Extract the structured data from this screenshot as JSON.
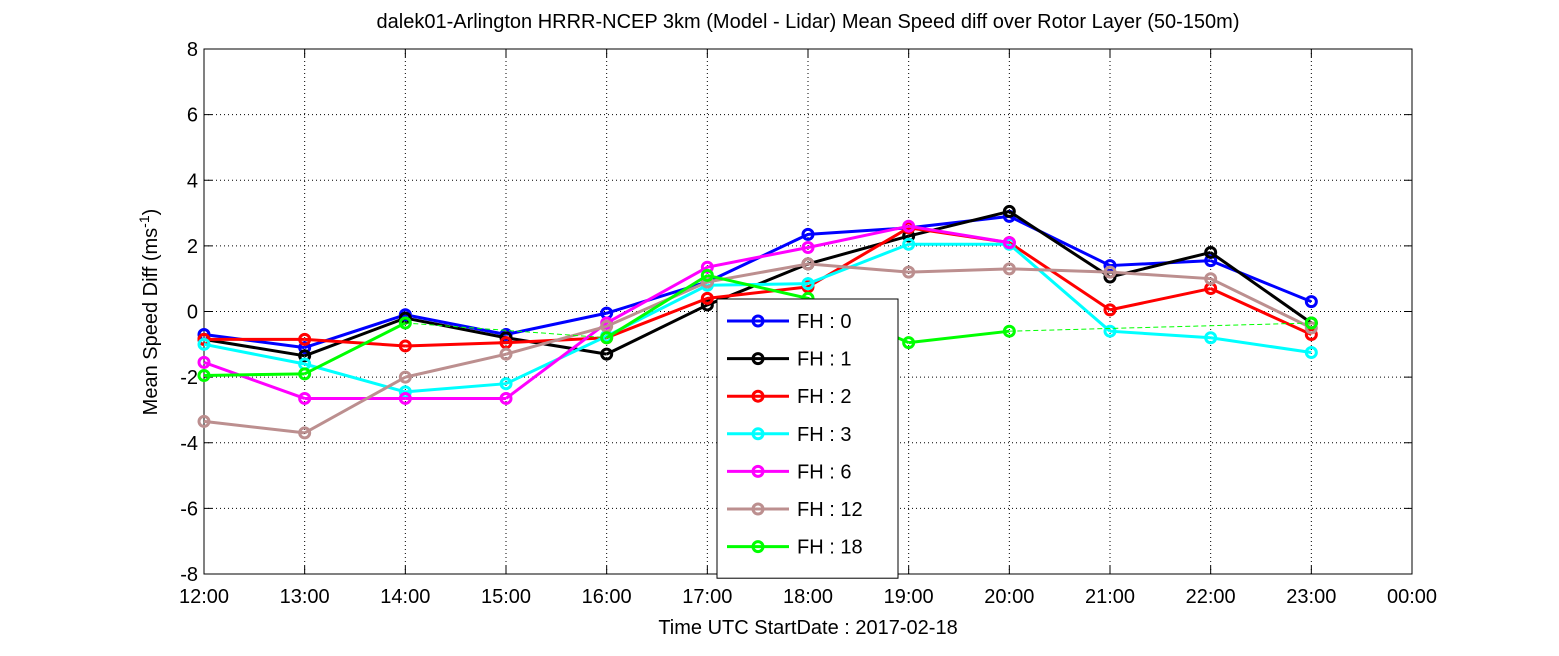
{
  "chart_data": {
    "type": "line",
    "title": "dalek01-Arlington HRRR-NCEP 3km (Model - Lidar) Mean Speed diff over Rotor Layer (50-150m)",
    "xlabel": "Time UTC    StartDate : 2017-02-18",
    "ylabel_main": "Mean Speed Diff (ms",
    "ylabel_sup": "-1",
    "ylabel_close": ")",
    "x_ticks": [
      "12:00",
      "13:00",
      "14:00",
      "15:00",
      "16:00",
      "17:00",
      "18:00",
      "19:00",
      "20:00",
      "21:00",
      "22:00",
      "23:00",
      "00:00"
    ],
    "y_ticks": [
      "8",
      "6",
      "4",
      "2",
      "0",
      "-2",
      "-4",
      "-6",
      "-8"
    ],
    "ylim": [
      -8,
      8
    ],
    "grid": true,
    "legend_position": "center",
    "series": [
      {
        "name": "FH : 0",
        "color": "#0000ff",
        "values": [
          -0.7,
          -1.1,
          -0.1,
          -0.7,
          -0.05,
          0.9,
          2.35,
          2.55,
          2.9,
          1.4,
          1.55,
          0.3
        ]
      },
      {
        "name": "FH : 1",
        "color": "#000000",
        "values": [
          -0.85,
          -1.35,
          -0.2,
          -0.8,
          -1.3,
          0.2,
          1.45,
          2.3,
          3.05,
          1.05,
          1.8,
          -0.35
        ]
      },
      {
        "name": "FH : 2",
        "color": "#ff0000",
        "values": [
          -0.85,
          -0.85,
          -1.05,
          -0.95,
          -0.8,
          0.4,
          0.75,
          2.55,
          2.1,
          0.05,
          0.7,
          -0.7
        ]
      },
      {
        "name": "FH : 3",
        "color": "#00ffff",
        "values": [
          -1.0,
          -1.6,
          -2.45,
          -2.2,
          -0.75,
          0.8,
          0.85,
          2.05,
          2.05,
          -0.6,
          -0.8,
          -1.25
        ]
      },
      {
        "name": "FH : 6",
        "color": "#ff00ff",
        "values": [
          -1.55,
          -2.65,
          -2.65,
          -2.65,
          -0.35,
          1.35,
          1.95,
          2.6,
          2.1,
          null,
          null,
          null
        ]
      },
      {
        "name": "FH : 12",
        "color": "#bc8f8f",
        "values": [
          -3.35,
          -3.7,
          -2.0,
          -1.3,
          -0.45,
          0.9,
          1.45,
          1.2,
          1.3,
          1.2,
          1.0,
          -0.5
        ]
      },
      {
        "name": "FH : 18",
        "color": "#00ff00",
        "values": [
          -1.95,
          -1.9,
          -0.35,
          null,
          -0.8,
          1.1,
          0.4,
          -0.95,
          -0.6,
          null,
          null,
          -0.35
        ]
      }
    ]
  }
}
